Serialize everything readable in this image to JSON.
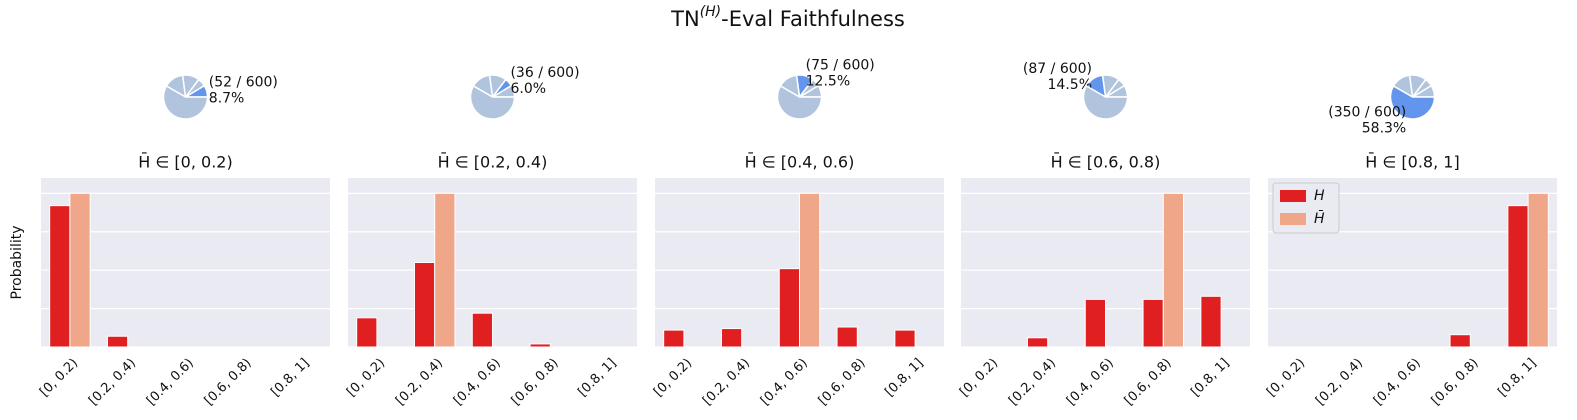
{
  "title": {
    "base": "TN",
    "sup": "(H)",
    "rest": "-Eval Faithfulness"
  },
  "chart_data": [
    {
      "type": "pie",
      "values": [
        52,
        36,
        75,
        87,
        350
      ],
      "highlight": 0,
      "colors": [
        "#b0c4de",
        "#6495ed"
      ],
      "annotation": [
        "(52 / 600)",
        "8.7%"
      ]
    },
    {
      "type": "pie",
      "values": [
        52,
        36,
        75,
        87,
        350
      ],
      "highlight": 1,
      "colors": [
        "#b0c4de",
        "#6495ed"
      ],
      "annotation": [
        "(36 / 600)",
        "6.0%"
      ]
    },
    {
      "type": "pie",
      "values": [
        52,
        36,
        75,
        87,
        350
      ],
      "highlight": 2,
      "colors": [
        "#b0c4de",
        "#6495ed"
      ],
      "annotation": [
        "(75 / 600)",
        "12.5%"
      ]
    },
    {
      "type": "pie",
      "values": [
        52,
        36,
        75,
        87,
        350
      ],
      "highlight": 3,
      "colors": [
        "#b0c4de",
        "#6495ed"
      ],
      "annotation": [
        "(87 / 600)",
        "14.5%"
      ]
    },
    {
      "type": "pie",
      "values": [
        52,
        36,
        75,
        87,
        350
      ],
      "highlight": 4,
      "colors": [
        "#b0c4de",
        "#6495ed"
      ],
      "annotation": [
        "(350 / 600)",
        "58.3%"
      ]
    },
    {
      "type": "bar",
      "title": "H̄ ∈ [0, 0.2)",
      "ylabel": "Probability",
      "categories": [
        "[0, 0.2)",
        "[0.2, 0.4)",
        "[0.4, 0.6)",
        "[0.6, 0.8)",
        "[0.8, 1]"
      ],
      "series": [
        {
          "name": "H",
          "color": "#e02020",
          "values": [
            0.92,
            0.07,
            0,
            0,
            0
          ]
        },
        {
          "name": "H̄",
          "color": "#f0a688",
          "values": [
            1,
            0,
            0,
            0,
            0
          ]
        }
      ],
      "ylim": [
        0,
        1.1
      ],
      "yticks": [
        0,
        0.25,
        0.5,
        0.75,
        1
      ],
      "grid": true
    },
    {
      "type": "bar",
      "title": "H̄ ∈ [0.2, 0.4)",
      "categories": [
        "[0, 0.2)",
        "[0.2, 0.4)",
        "[0.4, 0.6)",
        "[0.6, 0.8)",
        "[0.8, 1]"
      ],
      "series": [
        {
          "name": "H",
          "color": "#e02020",
          "values": [
            0.19,
            0.55,
            0.22,
            0.02,
            0
          ]
        },
        {
          "name": "H̄",
          "color": "#f0a688",
          "values": [
            0,
            1,
            0,
            0,
            0
          ]
        }
      ],
      "ylim": [
        0,
        1.1
      ],
      "yticks": [
        0,
        0.25,
        0.5,
        0.75,
        1
      ],
      "grid": true
    },
    {
      "type": "bar",
      "title": "H̄ ∈ [0.4, 0.6)",
      "categories": [
        "[0, 0.2)",
        "[0.2, 0.4)",
        "[0.4, 0.6)",
        "[0.6, 0.8)",
        "[0.8, 1]"
      ],
      "series": [
        {
          "name": "H",
          "color": "#e02020",
          "values": [
            0.11,
            0.12,
            0.51,
            0.13,
            0.11
          ]
        },
        {
          "name": "H̄",
          "color": "#f0a688",
          "values": [
            0,
            0,
            1,
            0,
            0
          ]
        }
      ],
      "ylim": [
        0,
        1.1
      ],
      "yticks": [
        0,
        0.25,
        0.5,
        0.75,
        1
      ],
      "grid": true
    },
    {
      "type": "bar",
      "title": "H̄ ∈ [0.6, 0.8)",
      "categories": [
        "[0, 0.2)",
        "[0.2, 0.4)",
        "[0.4, 0.6)",
        "[0.6, 0.8)",
        "[0.8, 1]"
      ],
      "series": [
        {
          "name": "H",
          "color": "#e02020",
          "values": [
            0,
            0.06,
            0.31,
            0.31,
            0.33
          ]
        },
        {
          "name": "H̄",
          "color": "#f0a688",
          "values": [
            0,
            0,
            0,
            1,
            0
          ]
        }
      ],
      "ylim": [
        0,
        1.1
      ],
      "yticks": [
        0,
        0.25,
        0.5,
        0.75,
        1
      ],
      "grid": true
    },
    {
      "type": "bar",
      "title": "H̄ ∈ [0.8, 1]",
      "legend": "upper left",
      "categories": [
        "[0, 0.2)",
        "[0.2, 0.4)",
        "[0.4, 0.6)",
        "[0.6, 0.8)",
        "[0.8, 1]"
      ],
      "series": [
        {
          "name": "H",
          "color": "#e02020",
          "values": [
            0,
            0,
            0,
            0.08,
            0.92
          ]
        },
        {
          "name": "H̄",
          "color": "#f0a688",
          "values": [
            0,
            0,
            0,
            0,
            1
          ]
        }
      ],
      "ylim": [
        0,
        1.1
      ],
      "yticks": [
        0,
        0.25,
        0.5,
        0.75,
        1
      ],
      "grid": true
    }
  ]
}
